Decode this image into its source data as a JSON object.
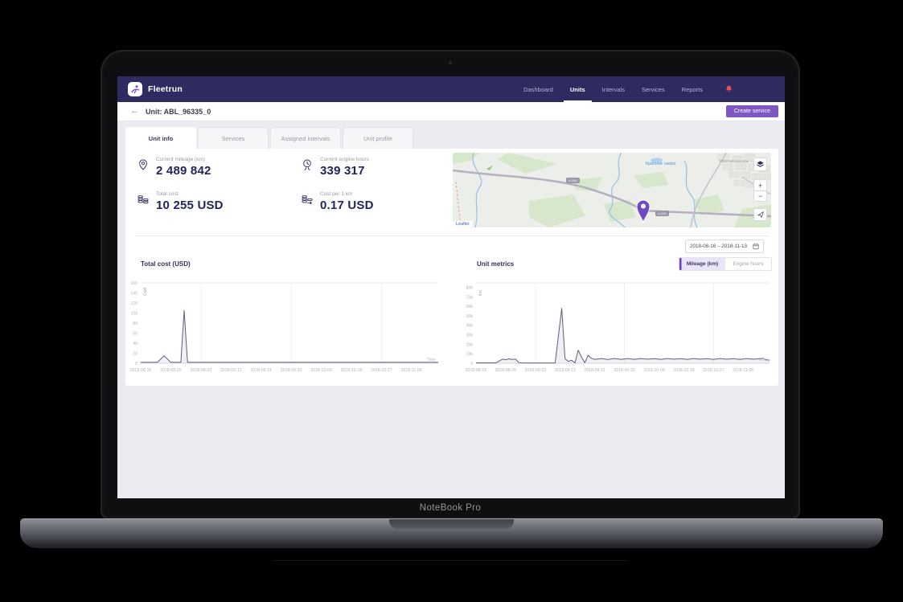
{
  "device": {
    "name": "NoteBook Pro"
  },
  "colors": {
    "navbar_bg": "#2F2A60",
    "accent_purple": "#7E57C2",
    "toggle_purple": "#6B3FC9",
    "chart_line": "#5D5D80",
    "bell_red": "#E8514E",
    "marker_purple": "#6D4BC4",
    "page_bg": "#ECEBF1"
  },
  "navbar": {
    "brand": "Fleetrun",
    "items": [
      {
        "label": "Dashboard",
        "active": false
      },
      {
        "label": "Units",
        "active": true
      },
      {
        "label": "Intervals",
        "active": false
      },
      {
        "label": "Services",
        "active": false
      },
      {
        "label": "Reports",
        "active": false
      }
    ]
  },
  "unit_header": {
    "back_icon": "←",
    "title": "Unit: ABL_96335_0",
    "create_button": "Create service"
  },
  "tabs": [
    {
      "label": "Unit info",
      "active": true
    },
    {
      "label": "Services",
      "active": false
    },
    {
      "label": "Assigned intervals",
      "active": false
    },
    {
      "label": "Unit profile",
      "active": false
    }
  ],
  "stats": [
    {
      "icon": "location-pin-icon",
      "label": "Current mileage (km)",
      "value": "2 489 842"
    },
    {
      "icon": "engine-hours-icon",
      "label": "Current engine hours",
      "value": "339 317"
    },
    {
      "icon": "coins-icon",
      "label": "Total cost",
      "value": "10 255 USD"
    },
    {
      "icon": "coins-rate-icon",
      "label": "Cost per 1 km",
      "value": "0.17 USD"
    }
  ],
  "map": {
    "attribution": "Leaflet",
    "lake_label": "Красное озеро",
    "city_label": "Рабочий поселок",
    "road_label": "А-260",
    "zoom_in": "+",
    "zoom_out": "−",
    "controls": [
      "layers",
      "zoom-in",
      "zoom-out",
      "locate"
    ]
  },
  "date_range": {
    "value": "2018-08-16 – 2018-11-13"
  },
  "metrics_toggle": [
    {
      "label": "Mileage (km)",
      "active": true
    },
    {
      "label": "Engine hours",
      "active": false
    }
  ],
  "chart_data": [
    {
      "type": "area",
      "title": "Total cost (USD)",
      "xlabel": "Time",
      "ylabel": "Cost",
      "x_start": "2018-08-16",
      "x_end": "2018-11-13",
      "ylim": [
        0,
        160
      ],
      "y_ticks": [
        0,
        20,
        40,
        60,
        80,
        100,
        120,
        140,
        160
      ],
      "y_tick_labels": [
        "0",
        "20",
        "40",
        "60",
        "80",
        "100",
        "120",
        "140",
        "160"
      ],
      "x_ticks": [
        "2018-08-16",
        "2018-08-25",
        "2018-09-03",
        "2018-09-12",
        "2018-09-21",
        "2018-09-30",
        "2018-10-09",
        "2018-10-18",
        "2018-10-27",
        "2018-11-05"
      ],
      "grid_x": [
        "2018-09-03",
        "2018-09-30",
        "2018-10-27"
      ],
      "points": [
        [
          "2018-08-16",
          2
        ],
        [
          "2018-08-21",
          2
        ],
        [
          "2018-08-23",
          15
        ],
        [
          "2018-08-25",
          2
        ],
        [
          "2018-08-28",
          2
        ],
        [
          "2018-08-29",
          105
        ],
        [
          "2018-08-30",
          2
        ],
        [
          "2018-11-13",
          2
        ]
      ]
    },
    {
      "type": "area",
      "title": "Unit metrics",
      "series_name": "Mileage (km)",
      "xlabel": "Time",
      "ylabel": "km",
      "x_start": "2018-08-16",
      "x_end": "2018-11-13",
      "ylim": [
        0,
        85000
      ],
      "y_ticks": [
        0,
        10000,
        20000,
        30000,
        40000,
        50000,
        60000,
        70000,
        80000
      ],
      "y_tick_labels": [
        "0",
        "10k",
        "20k",
        "30k",
        "40k",
        "50k",
        "60k",
        "70k",
        "80k"
      ],
      "x_ticks": [
        "2018-08-16",
        "2018-08-25",
        "2018-09-03",
        "2018-09-12",
        "2018-09-21",
        "2018-09-30",
        "2018-10-09",
        "2018-10-18",
        "2018-10-27",
        "2018-11-05"
      ],
      "grid_x": [
        "2018-09-03",
        "2018-09-30",
        "2018-10-27"
      ],
      "points": [
        [
          "2018-08-16",
          400
        ],
        [
          "2018-08-22",
          400
        ],
        [
          "2018-08-24",
          4300
        ],
        [
          "2018-08-25",
          3800
        ],
        [
          "2018-08-26",
          4700
        ],
        [
          "2018-08-27",
          4000
        ],
        [
          "2018-08-28",
          4400
        ],
        [
          "2018-08-29",
          700
        ],
        [
          "2018-08-30",
          300
        ],
        [
          "2018-09-09",
          300
        ],
        [
          "2018-09-11",
          58000
        ],
        [
          "2018-09-12",
          4800
        ],
        [
          "2018-09-13",
          2000
        ],
        [
          "2018-09-14",
          3200
        ],
        [
          "2018-09-15",
          400
        ],
        [
          "2018-09-16",
          13800
        ],
        [
          "2018-09-17",
          6500
        ],
        [
          "2018-09-18",
          700
        ],
        [
          "2018-09-19",
          8400
        ],
        [
          "2018-09-20",
          5300
        ],
        [
          "2018-09-21",
          4200
        ],
        [
          "2018-09-23",
          5000
        ],
        [
          "2018-09-25",
          4100
        ],
        [
          "2018-09-27",
          5100
        ],
        [
          "2018-09-29",
          4200
        ],
        [
          "2018-10-01",
          5000
        ],
        [
          "2018-10-03",
          4200
        ],
        [
          "2018-10-05",
          5000
        ],
        [
          "2018-10-07",
          4300
        ],
        [
          "2018-10-09",
          4900
        ],
        [
          "2018-10-11",
          4200
        ],
        [
          "2018-10-13",
          5000
        ],
        [
          "2018-10-15",
          4300
        ],
        [
          "2018-10-17",
          4900
        ],
        [
          "2018-10-19",
          4200
        ],
        [
          "2018-10-21",
          5000
        ],
        [
          "2018-10-23",
          4300
        ],
        [
          "2018-10-25",
          4900
        ],
        [
          "2018-10-27",
          4200
        ],
        [
          "2018-10-29",
          5000
        ],
        [
          "2018-10-31",
          4300
        ],
        [
          "2018-11-02",
          4900
        ],
        [
          "2018-11-04",
          4200
        ],
        [
          "2018-11-06",
          5000
        ],
        [
          "2018-11-08",
          4300
        ],
        [
          "2018-11-10",
          4800
        ],
        [
          "2018-11-11",
          5200
        ],
        [
          "2018-11-12",
          3600
        ],
        [
          "2018-11-13",
          3400
        ]
      ]
    }
  ]
}
